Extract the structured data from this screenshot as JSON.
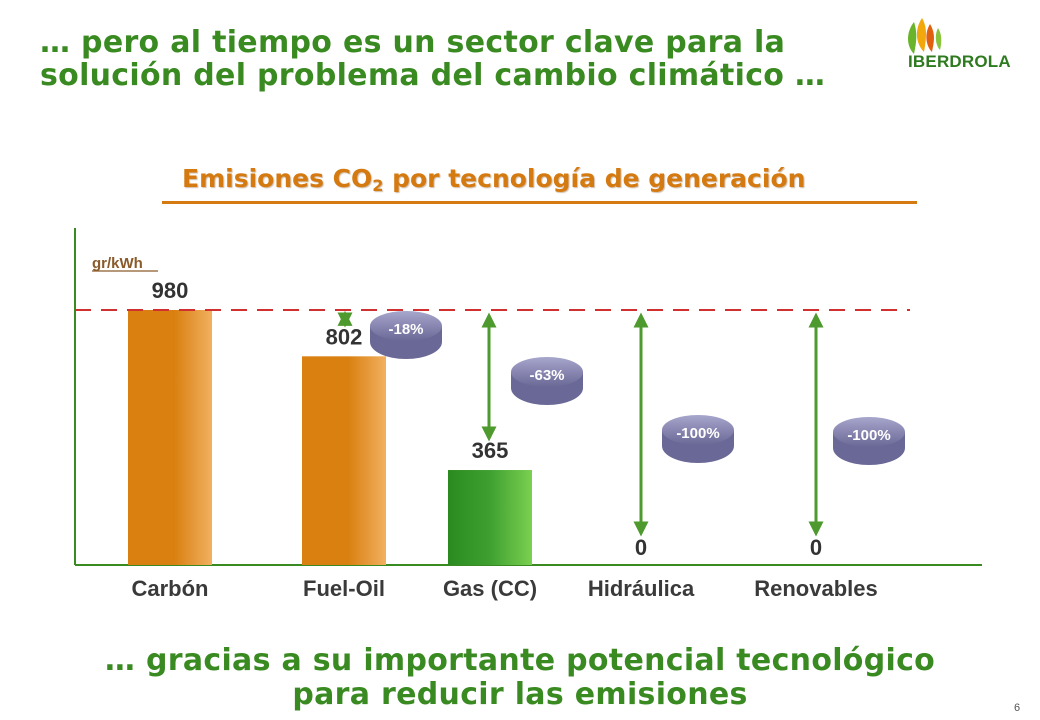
{
  "headline": {
    "line1": "… pero al tiempo es un sector clave para la",
    "line2": "solución del problema del cambio climático …"
  },
  "logo": {
    "text": "IBERDROLA"
  },
  "footer": {
    "line1": "… gracias a su importante potencial tecnológico",
    "line2": "para reducir las emisiones"
  },
  "page_number": "6",
  "chart_data": {
    "type": "bar",
    "title_prefix": "Emisiones CO",
    "title_sub": "2",
    "title_suffix": " por tecnología de generación",
    "unit_label": "gr/kWh",
    "categories": [
      "Carbón",
      "Fuel-Oil",
      "Gas (CC)",
      "Hidráulica",
      "Renovables"
    ],
    "values": [
      980,
      802,
      365,
      0,
      0
    ],
    "value_labels": [
      "980",
      "802",
      "365",
      "0",
      "0"
    ],
    "reductions": [
      "",
      "-18%",
      "-63%",
      "-100%",
      "-100%"
    ],
    "reference_value": 980,
    "ylim": [
      0,
      1000
    ],
    "colors": {
      "orange": "#d98010",
      "orange_light": "#f2b060",
      "green": "#3fa030",
      "green_light": "#7ad050",
      "arrow": "#4e9a2e",
      "axis": "#3a8a22",
      "refline": "#d03030",
      "badge": "#8d8cb6",
      "badge_dark": "#6a6896"
    }
  }
}
